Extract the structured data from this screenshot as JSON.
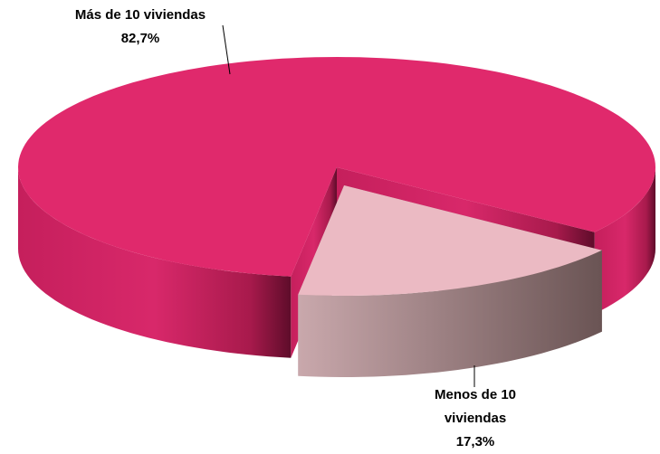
{
  "chart_data": {
    "type": "pie",
    "categories": [
      "Más de 10 viviendas",
      "Menos de 10 viviendas"
    ],
    "values": [
      82.7,
      17.3
    ],
    "value_labels": [
      "82,7%",
      "17,3%"
    ],
    "colors": [
      "#e0296c",
      "#ebbac3"
    ]
  }
}
